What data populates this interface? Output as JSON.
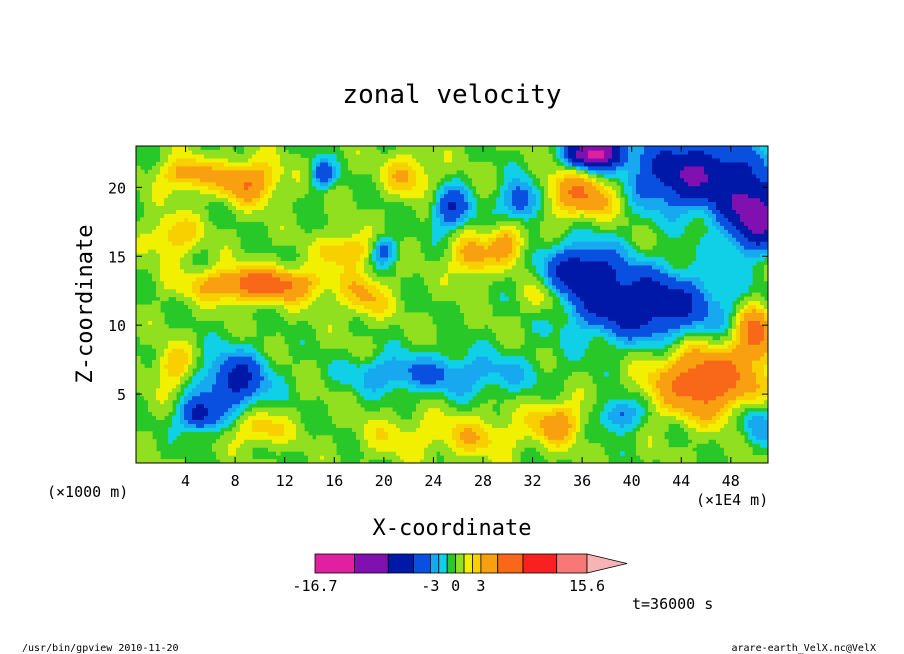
{
  "chart_data": {
    "type": "heatmap",
    "title": "zonal velocity",
    "xlabel": "X-coordinate",
    "ylabel": "Z-coordinate",
    "x_unit_label": "(×1E4 m)",
    "z_unit_label": "(×1000 m)",
    "xlim": [
      0,
      51
    ],
    "ylim": [
      0,
      23
    ],
    "x_ticks": [
      4,
      8,
      12,
      16,
      20,
      24,
      28,
      32,
      36,
      40,
      44,
      48
    ],
    "y_ticks": [
      5,
      10,
      15,
      20
    ],
    "colorbar": {
      "min_label": "-16.7",
      "labels": [
        "-3",
        "0",
        "3"
      ],
      "max_label": "15.6",
      "levels": [
        -16.7,
        -12,
        -8,
        -5,
        -3,
        -2,
        -1,
        0,
        1,
        2,
        3,
        5,
        8,
        12,
        15.6
      ],
      "colors": [
        "#e020a0",
        "#8010b0",
        "#0018a8",
        "#0a50e0",
        "#18a8f0",
        "#10d0e8",
        "#28c828",
        "#90e020",
        "#f0f000",
        "#f8d000",
        "#f8a010",
        "#f86818",
        "#f82020",
        "#f87878"
      ]
    },
    "annotation": "t=36000 s",
    "footer_left": "/usr/bin/gpview   2010-11-20",
    "footer_right": "arare-earth_VelX.nc@VelX",
    "field_hotspots": [
      {
        "x": 10,
        "z": 13,
        "value": 6.5,
        "sx": 5,
        "sz": 1.2
      },
      {
        "x": 9,
        "z": 20.5,
        "value": 5,
        "sx": 2.5,
        "sz": 1.5
      },
      {
        "x": 4,
        "z": 21,
        "value": 4,
        "sx": 2,
        "sz": 1.2
      },
      {
        "x": 22,
        "z": 21,
        "value": 3,
        "sx": 2,
        "sz": 1.5
      },
      {
        "x": 17,
        "z": 15.5,
        "value": 3.5,
        "sx": 2,
        "sz": 1.2
      },
      {
        "x": 27,
        "z": 15,
        "value": 4,
        "sx": 1.5,
        "sz": 1.5
      },
      {
        "x": 30,
        "z": 16,
        "value": 4,
        "sx": 1.5,
        "sz": 1.5
      },
      {
        "x": 36,
        "z": 19.5,
        "value": 5,
        "sx": 3,
        "sz": 1.6
      },
      {
        "x": 46,
        "z": 6,
        "value": 7,
        "sx": 4,
        "sz": 2.5
      },
      {
        "x": 50,
        "z": 9.5,
        "value": 6,
        "sx": 1.5,
        "sz": 2
      },
      {
        "x": 34,
        "z": 3,
        "value": 4,
        "sx": 2,
        "sz": 1.5
      },
      {
        "x": 3,
        "z": 16.5,
        "value": 3,
        "sx": 2,
        "sz": 1.5
      },
      {
        "x": 3,
        "z": 7,
        "value": 3,
        "sx": 1.5,
        "sz": 1.5
      },
      {
        "x": 10,
        "z": 2.5,
        "value": 3,
        "sx": 2,
        "sz": 1.2
      },
      {
        "x": 33,
        "z": 12,
        "value": 2.5,
        "sx": 2,
        "sz": 1.5
      },
      {
        "x": 8,
        "z": 6,
        "value": -6,
        "sx": 2.5,
        "sz": 2
      },
      {
        "x": 5,
        "z": 3.5,
        "value": -6,
        "sx": 1.5,
        "sz": 1.2
      },
      {
        "x": 41,
        "z": 11.5,
        "value": -7,
        "sx": 6,
        "sz": 2.5
      },
      {
        "x": 36,
        "z": 14,
        "value": -6,
        "sx": 3,
        "sz": 2
      },
      {
        "x": 45,
        "z": 21,
        "value": -8,
        "sx": 5,
        "sz": 2.5
      },
      {
        "x": 50,
        "z": 18,
        "value": -9,
        "sx": 2.5,
        "sz": 2.5
      },
      {
        "x": 37,
        "z": 22.5,
        "value": -13,
        "sx": 2,
        "sz": 1
      },
      {
        "x": 31,
        "z": 19,
        "value": -5,
        "sx": 1.5,
        "sz": 1.5
      },
      {
        "x": 25.5,
        "z": 18.5,
        "value": -5,
        "sx": 1.5,
        "sz": 1.5
      },
      {
        "x": 20,
        "z": 15.5,
        "value": -4,
        "sx": 1,
        "sz": 1
      },
      {
        "x": 15,
        "z": 21,
        "value": -4,
        "sx": 1,
        "sz": 1
      },
      {
        "x": 26,
        "z": 6.5,
        "value": -3,
        "sx": 6,
        "sz": 1.5
      },
      {
        "x": 20,
        "z": 6.5,
        "value": -2,
        "sx": 3,
        "sz": 1.2
      },
      {
        "x": 39,
        "z": 3.5,
        "value": -4,
        "sx": 1.5,
        "sz": 1.2
      },
      {
        "x": 50,
        "z": 3,
        "value": -3,
        "sx": 1.5,
        "sz": 1.5
      },
      {
        "x": 18.5,
        "z": 12,
        "value": 3,
        "sx": 1.8,
        "sz": 1.5
      },
      {
        "x": 27.5,
        "z": 2,
        "value": 2.5,
        "sx": 4,
        "sz": 1.5
      },
      {
        "x": 21,
        "z": 2,
        "value": 1.5,
        "sx": 3,
        "sz": 1.5
      }
    ]
  }
}
